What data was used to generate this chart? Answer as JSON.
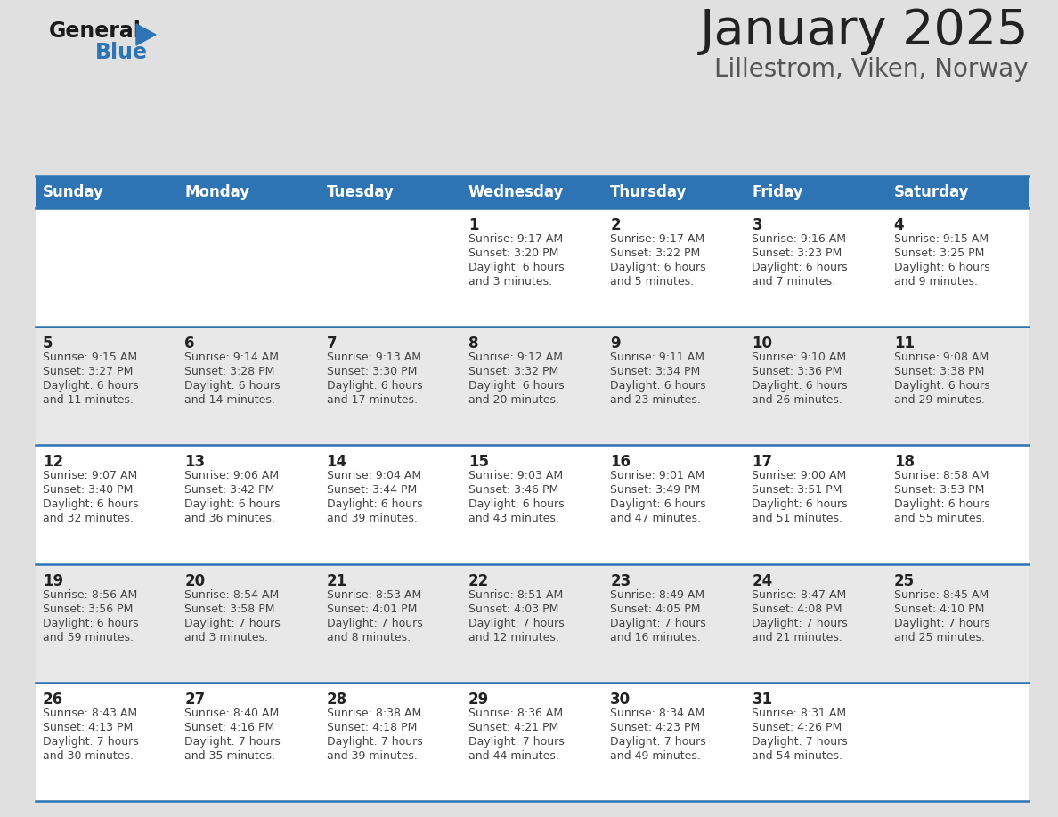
{
  "title": "January 2025",
  "subtitle": "Lillestrom, Viken, Norway",
  "days_of_week": [
    "Sunday",
    "Monday",
    "Tuesday",
    "Wednesday",
    "Thursday",
    "Friday",
    "Saturday"
  ],
  "header_bg": "#2E74B5",
  "header_text": "#FFFFFF",
  "row_bg_odd": "#FFFFFF",
  "row_bg_even": "#E8E8E8",
  "page_bg": "#E0E0E0",
  "cell_text_color": "#444444",
  "day_num_color": "#222222",
  "title_color": "#222222",
  "subtitle_color": "#555555",
  "divider_color": "#2E74B5",
  "calendar_data": [
    [
      {
        "day": null,
        "sunrise": null,
        "sunset": null,
        "daylight": null
      },
      {
        "day": null,
        "sunrise": null,
        "sunset": null,
        "daylight": null
      },
      {
        "day": null,
        "sunrise": null,
        "sunset": null,
        "daylight": null
      },
      {
        "day": 1,
        "sunrise": "9:17 AM",
        "sunset": "3:20 PM",
        "daylight": "6 hours\nand 3 minutes."
      },
      {
        "day": 2,
        "sunrise": "9:17 AM",
        "sunset": "3:22 PM",
        "daylight": "6 hours\nand 5 minutes."
      },
      {
        "day": 3,
        "sunrise": "9:16 AM",
        "sunset": "3:23 PM",
        "daylight": "6 hours\nand 7 minutes."
      },
      {
        "day": 4,
        "sunrise": "9:15 AM",
        "sunset": "3:25 PM",
        "daylight": "6 hours\nand 9 minutes."
      }
    ],
    [
      {
        "day": 5,
        "sunrise": "9:15 AM",
        "sunset": "3:27 PM",
        "daylight": "6 hours\nand 11 minutes."
      },
      {
        "day": 6,
        "sunrise": "9:14 AM",
        "sunset": "3:28 PM",
        "daylight": "6 hours\nand 14 minutes."
      },
      {
        "day": 7,
        "sunrise": "9:13 AM",
        "sunset": "3:30 PM",
        "daylight": "6 hours\nand 17 minutes."
      },
      {
        "day": 8,
        "sunrise": "9:12 AM",
        "sunset": "3:32 PM",
        "daylight": "6 hours\nand 20 minutes."
      },
      {
        "day": 9,
        "sunrise": "9:11 AM",
        "sunset": "3:34 PM",
        "daylight": "6 hours\nand 23 minutes."
      },
      {
        "day": 10,
        "sunrise": "9:10 AM",
        "sunset": "3:36 PM",
        "daylight": "6 hours\nand 26 minutes."
      },
      {
        "day": 11,
        "sunrise": "9:08 AM",
        "sunset": "3:38 PM",
        "daylight": "6 hours\nand 29 minutes."
      }
    ],
    [
      {
        "day": 12,
        "sunrise": "9:07 AM",
        "sunset": "3:40 PM",
        "daylight": "6 hours\nand 32 minutes."
      },
      {
        "day": 13,
        "sunrise": "9:06 AM",
        "sunset": "3:42 PM",
        "daylight": "6 hours\nand 36 minutes."
      },
      {
        "day": 14,
        "sunrise": "9:04 AM",
        "sunset": "3:44 PM",
        "daylight": "6 hours\nand 39 minutes."
      },
      {
        "day": 15,
        "sunrise": "9:03 AM",
        "sunset": "3:46 PM",
        "daylight": "6 hours\nand 43 minutes."
      },
      {
        "day": 16,
        "sunrise": "9:01 AM",
        "sunset": "3:49 PM",
        "daylight": "6 hours\nand 47 minutes."
      },
      {
        "day": 17,
        "sunrise": "9:00 AM",
        "sunset": "3:51 PM",
        "daylight": "6 hours\nand 51 minutes."
      },
      {
        "day": 18,
        "sunrise": "8:58 AM",
        "sunset": "3:53 PM",
        "daylight": "6 hours\nand 55 minutes."
      }
    ],
    [
      {
        "day": 19,
        "sunrise": "8:56 AM",
        "sunset": "3:56 PM",
        "daylight": "6 hours\nand 59 minutes."
      },
      {
        "day": 20,
        "sunrise": "8:54 AM",
        "sunset": "3:58 PM",
        "daylight": "7 hours\nand 3 minutes."
      },
      {
        "day": 21,
        "sunrise": "8:53 AM",
        "sunset": "4:01 PM",
        "daylight": "7 hours\nand 8 minutes."
      },
      {
        "day": 22,
        "sunrise": "8:51 AM",
        "sunset": "4:03 PM",
        "daylight": "7 hours\nand 12 minutes."
      },
      {
        "day": 23,
        "sunrise": "8:49 AM",
        "sunset": "4:05 PM",
        "daylight": "7 hours\nand 16 minutes."
      },
      {
        "day": 24,
        "sunrise": "8:47 AM",
        "sunset": "4:08 PM",
        "daylight": "7 hours\nand 21 minutes."
      },
      {
        "day": 25,
        "sunrise": "8:45 AM",
        "sunset": "4:10 PM",
        "daylight": "7 hours\nand 25 minutes."
      }
    ],
    [
      {
        "day": 26,
        "sunrise": "8:43 AM",
        "sunset": "4:13 PM",
        "daylight": "7 hours\nand 30 minutes."
      },
      {
        "day": 27,
        "sunrise": "8:40 AM",
        "sunset": "4:16 PM",
        "daylight": "7 hours\nand 35 minutes."
      },
      {
        "day": 28,
        "sunrise": "8:38 AM",
        "sunset": "4:18 PM",
        "daylight": "7 hours\nand 39 minutes."
      },
      {
        "day": 29,
        "sunrise": "8:36 AM",
        "sunset": "4:21 PM",
        "daylight": "7 hours\nand 44 minutes."
      },
      {
        "day": 30,
        "sunrise": "8:34 AM",
        "sunset": "4:23 PM",
        "daylight": "7 hours\nand 49 minutes."
      },
      {
        "day": 31,
        "sunrise": "8:31 AM",
        "sunset": "4:26 PM",
        "daylight": "7 hours\nand 54 minutes."
      },
      {
        "day": null,
        "sunrise": null,
        "sunset": null,
        "daylight": null
      }
    ]
  ],
  "logo_text1": "General",
  "logo_text2": "Blue",
  "logo_color1": "#1a1a1a",
  "logo_color2": "#2E74B5",
  "logo_triangle_color": "#2E74B5"
}
